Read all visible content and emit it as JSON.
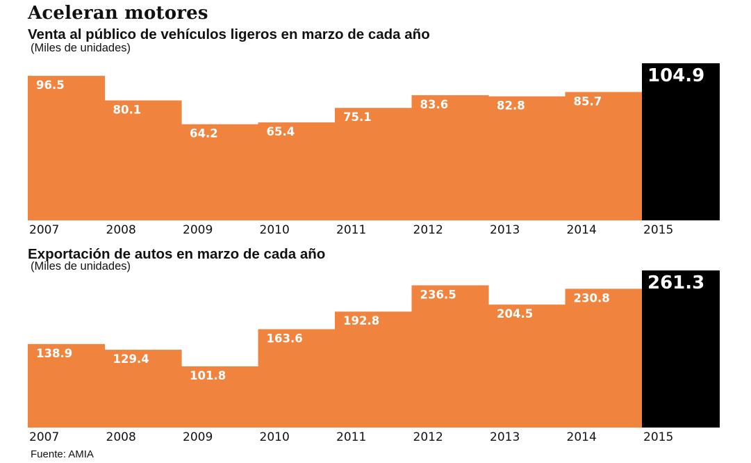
{
  "headline": "Aceleran motores",
  "source": "Fuente: AMIA",
  "colors": {
    "bar": "#f0843f",
    "highlight": "#000000",
    "label_on_bar": "#ffffff",
    "axis_text": "#111111"
  },
  "chart_data": [
    {
      "type": "bar",
      "title": "Venta al público de vehículos ligeros en marzo de cada año",
      "subtitle": "(Miles de unidades)",
      "categories": [
        "2007",
        "2008",
        "2009",
        "2010",
        "2011",
        "2012",
        "2013",
        "2014",
        "2015"
      ],
      "values": [
        96.5,
        80.1,
        64.2,
        65.4,
        75.1,
        83.6,
        82.8,
        85.7,
        104.9
      ],
      "labels": [
        "96.5",
        "80.1",
        "64.2",
        "65.4",
        "75.1",
        "83.6",
        "82.8",
        "85.7",
        "104.9"
      ],
      "highlight": "2015",
      "ylim": [
        0,
        104.9
      ]
    },
    {
      "type": "bar",
      "title": "Exportación de autos en marzo de cada año",
      "subtitle": "(Miles de unidades)",
      "categories": [
        "2007",
        "2008",
        "2009",
        "2010",
        "2011",
        "2012",
        "2013",
        "2014",
        "2015"
      ],
      "values": [
        138.9,
        129.4,
        101.8,
        163.6,
        192.8,
        236.5,
        204.5,
        230.8,
        261.3
      ],
      "labels": [
        "138.9",
        "129.4",
        "101.8",
        "163.6",
        "192.8",
        "236.5",
        "204.5",
        "230.8",
        "261.3"
      ],
      "highlight": "2015",
      "ylim": [
        0,
        261.3
      ]
    }
  ]
}
